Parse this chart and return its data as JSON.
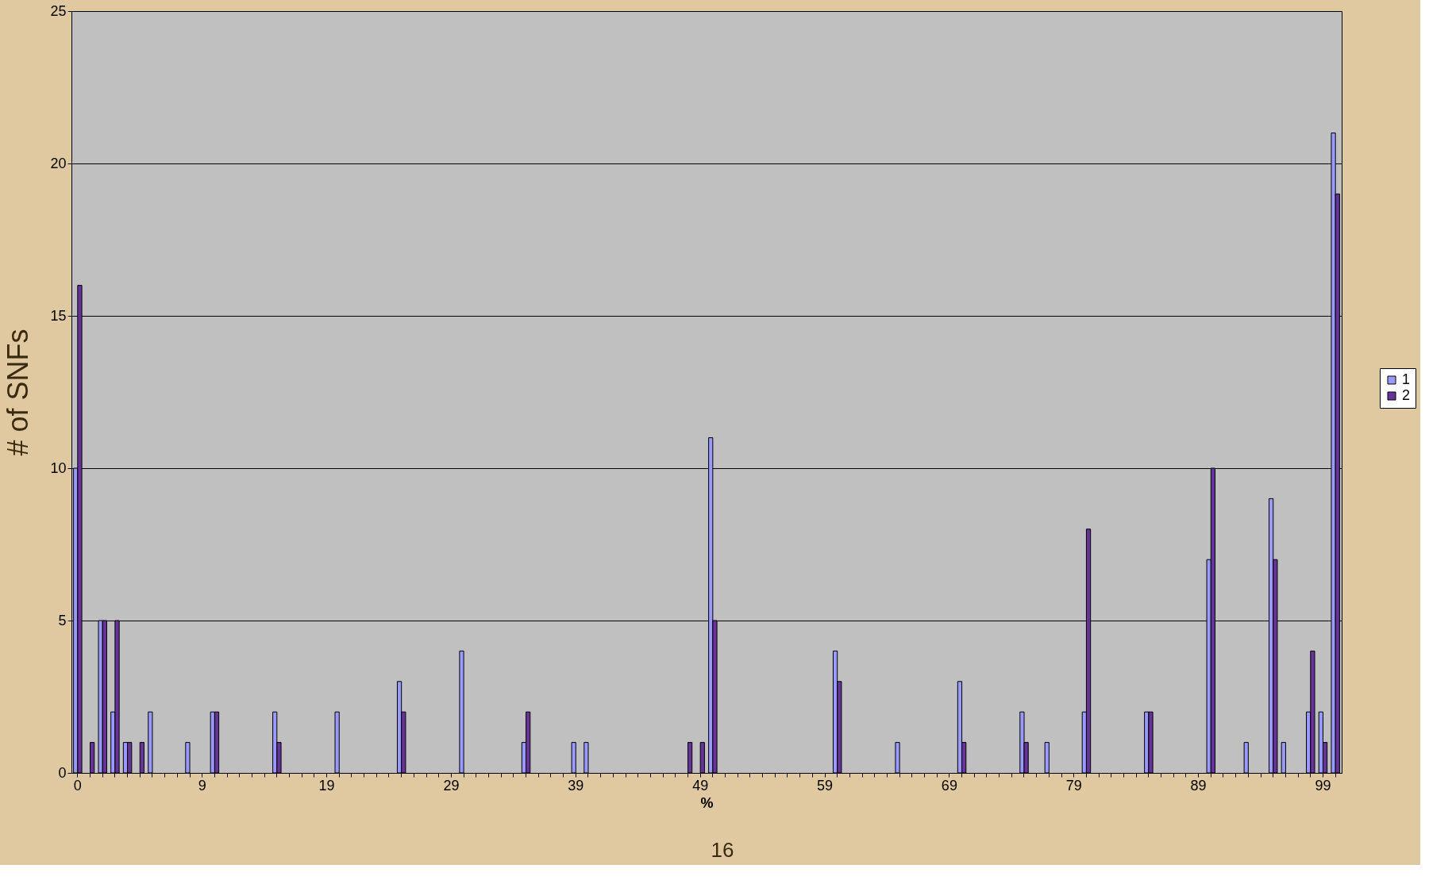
{
  "chart_data": {
    "type": "bar",
    "xlabel": "%",
    "ylabel": "# of SNFs",
    "categories": [
      "0",
      null,
      null,
      null,
      null,
      null,
      null,
      null,
      null,
      null,
      "9",
      null,
      null,
      null,
      null,
      null,
      null,
      null,
      null,
      null,
      "19",
      null,
      null,
      null,
      null,
      null,
      null,
      null,
      null,
      null,
      "29",
      null,
      null,
      null,
      null,
      null,
      null,
      null,
      null,
      null,
      "39",
      null,
      null,
      null,
      null,
      null,
      null,
      null,
      null,
      null,
      "49",
      null,
      null,
      null,
      null,
      null,
      null,
      null,
      null,
      null,
      "59",
      null,
      null,
      null,
      null,
      null,
      null,
      null,
      null,
      null,
      "69",
      null,
      null,
      null,
      null,
      null,
      null,
      null,
      null,
      null,
      "79",
      null,
      null,
      null,
      null,
      null,
      null,
      null,
      null,
      null,
      "89",
      null,
      null,
      null,
      null,
      null,
      null,
      null,
      null,
      null,
      "99",
      null
    ],
    "series": [
      {
        "name": "1",
        "color": "#9999ff",
        "values": [
          10,
          null,
          5,
          2,
          1,
          null,
          2,
          null,
          null,
          1,
          null,
          2,
          null,
          null,
          null,
          null,
          2,
          null,
          null,
          null,
          null,
          2,
          null,
          null,
          null,
          null,
          3,
          null,
          null,
          null,
          null,
          4,
          null,
          null,
          null,
          null,
          1,
          null,
          null,
          null,
          1,
          1,
          null,
          null,
          null,
          null,
          null,
          null,
          null,
          null,
          null,
          11,
          null,
          null,
          null,
          null,
          null,
          null,
          null,
          null,
          null,
          4,
          null,
          null,
          null,
          null,
          1,
          null,
          null,
          null,
          null,
          3,
          null,
          null,
          null,
          null,
          2,
          null,
          1,
          null,
          null,
          2,
          null,
          null,
          null,
          null,
          2,
          null,
          null,
          null,
          null,
          7,
          null,
          null,
          1,
          null,
          9,
          1,
          null,
          2,
          2,
          21
        ]
      },
      {
        "name": "2",
        "color": "#663399",
        "values": [
          16,
          1,
          5,
          5,
          1,
          1,
          null,
          null,
          null,
          null,
          null,
          2,
          null,
          null,
          null,
          null,
          1,
          null,
          null,
          null,
          null,
          null,
          null,
          null,
          null,
          null,
          2,
          null,
          null,
          null,
          null,
          null,
          null,
          null,
          null,
          null,
          2,
          null,
          null,
          null,
          null,
          null,
          null,
          null,
          null,
          null,
          null,
          null,
          null,
          1,
          1,
          5,
          null,
          null,
          null,
          null,
          null,
          null,
          null,
          null,
          null,
          3,
          null,
          null,
          null,
          null,
          null,
          null,
          null,
          null,
          null,
          1,
          null,
          null,
          null,
          null,
          1,
          null,
          null,
          null,
          null,
          8,
          null,
          null,
          null,
          null,
          2,
          null,
          null,
          null,
          null,
          10,
          null,
          null,
          null,
          null,
          7,
          null,
          null,
          4,
          1,
          19
        ]
      }
    ],
    "ylim": [
      0,
      25
    ],
    "yticks": [
      0,
      5,
      10,
      15,
      20,
      25
    ],
    "grid": "y",
    "legend": "right",
    "annotations": [
      "16"
    ]
  }
}
